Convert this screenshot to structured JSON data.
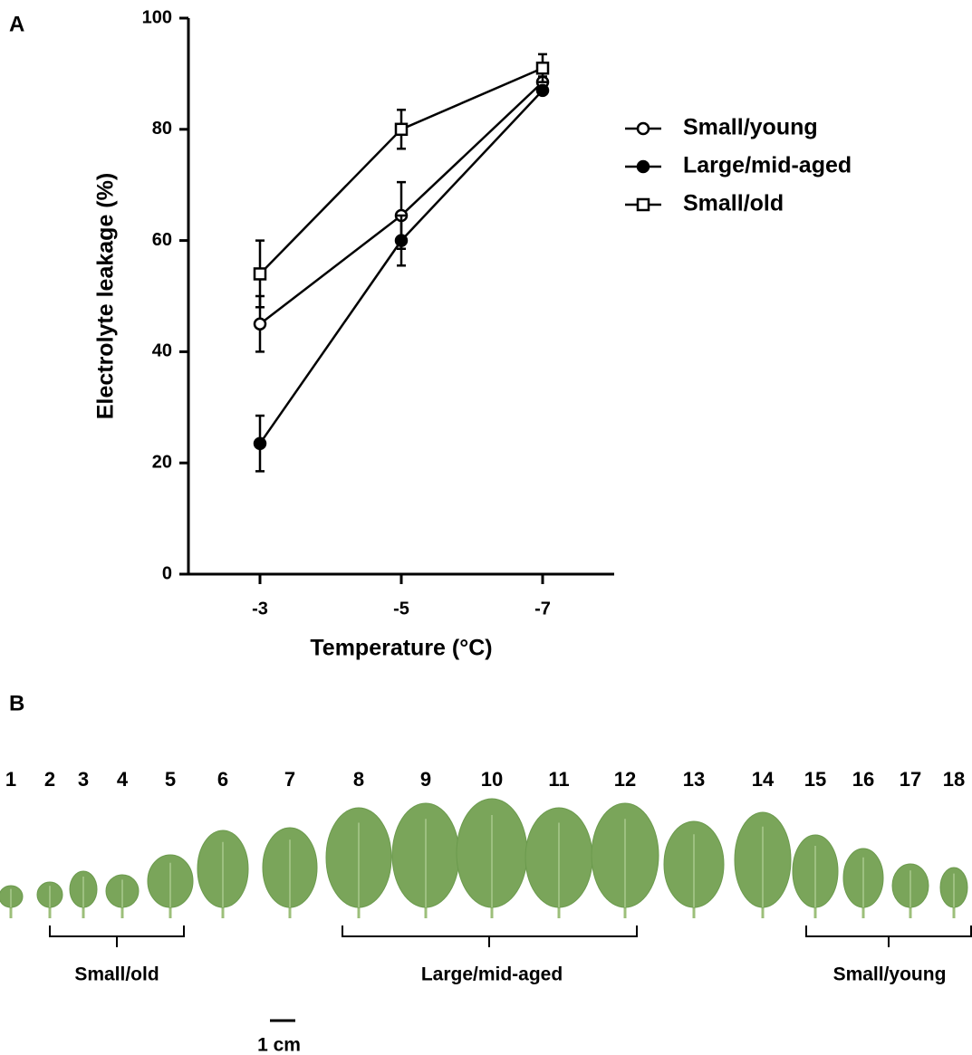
{
  "chart_data": {
    "type": "line",
    "panel": "A",
    "x_label": "Temperature (°C)",
    "y_label": "Electrolyte leakage (%)",
    "categories": [
      "-3",
      "-5",
      "-7"
    ],
    "ylim": [
      0,
      100
    ],
    "yticks": [
      0,
      20,
      40,
      60,
      80,
      100
    ],
    "series": [
      {
        "name": "Small/young",
        "color": "#000000",
        "marker": "circle-open",
        "values": [
          45,
          64.5,
          88.5
        ],
        "errors": [
          5,
          6,
          1
        ]
      },
      {
        "name": "Large/mid-aged",
        "color": "#000000",
        "marker": "circle-filled",
        "values": [
          23.5,
          60,
          87
        ],
        "errors": [
          5,
          4.5,
          0.5
        ]
      },
      {
        "name": "Small/old",
        "color": "#000000",
        "marker": "square-open",
        "values": [
          54,
          80,
          91
        ],
        "errors": [
          6,
          3.5,
          2.5
        ]
      }
    ]
  },
  "photo": {
    "panel": "B",
    "leaves": [
      "1",
      "2",
      "3",
      "4",
      "5",
      "6",
      "7",
      "8",
      "9",
      "10",
      "11",
      "12",
      "13",
      "14",
      "15",
      "16",
      "17",
      "18"
    ],
    "groups": [
      "Small/old",
      "Large/mid-aged",
      "Small/young"
    ],
    "scale_bar": "1 cm"
  }
}
